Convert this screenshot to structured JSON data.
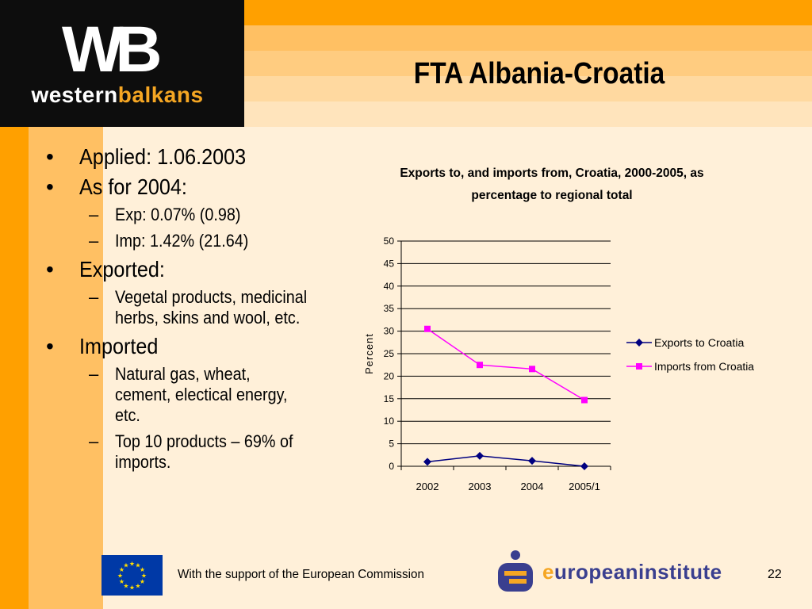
{
  "logo": {
    "wb": "WB",
    "western": "western",
    "balkans": "balkans"
  },
  "title": "FTA Albania-Croatia",
  "bullets": [
    {
      "text": "Applied: 1.06.2003",
      "subs": []
    },
    {
      "text": "As for 2004:",
      "subs": [
        "Exp: 0.07% (0.98)",
        "Imp: 1.42% (21.64)"
      ]
    },
    {
      "text": "Exported:",
      "subs": [
        "Vegetal products, medicinal herbs, skins and wool, etc."
      ]
    },
    {
      "text": "Imported",
      "subs": [
        "Natural gas, wheat, cement, electical energy, etc.",
        "Top 10 products – 69% of imports."
      ]
    }
  ],
  "chart_data": {
    "type": "line",
    "title": "Exports to, and imports from, Croatia, 2000-2005, as percentage to regional total",
    "title_lines": [
      "Exports to, and imports from, Croatia, 2000-2005, as",
      "percentage to regional total"
    ],
    "xlabel": "",
    "ylabel": "Percent",
    "categories": [
      "2002",
      "2003",
      "2004",
      "2005/1"
    ],
    "ylim": [
      0,
      50
    ],
    "yticks": [
      0,
      5,
      10,
      15,
      20,
      25,
      30,
      35,
      40,
      45,
      50
    ],
    "grid": true,
    "legend": "right",
    "series": [
      {
        "name": "Exports to Croatia",
        "values": [
          1.0,
          2.3,
          1.2,
          0.0
        ],
        "color": "#000080",
        "marker": "diamond"
      },
      {
        "name": "Imports from Croatia",
        "values": [
          30.5,
          22.5,
          21.6,
          14.7
        ],
        "color": "#FF00FF",
        "marker": "square"
      }
    ]
  },
  "footer": {
    "support_text": "With the support of the European Commission",
    "institute": "europeaninstitute",
    "institute_e": "e",
    "institute_rest": "uropeaninstitute",
    "page_number": "22"
  },
  "colors": {
    "accent": "#FFA000",
    "logo_orange": "#F5A623",
    "eu_blue": "#0039A6"
  }
}
